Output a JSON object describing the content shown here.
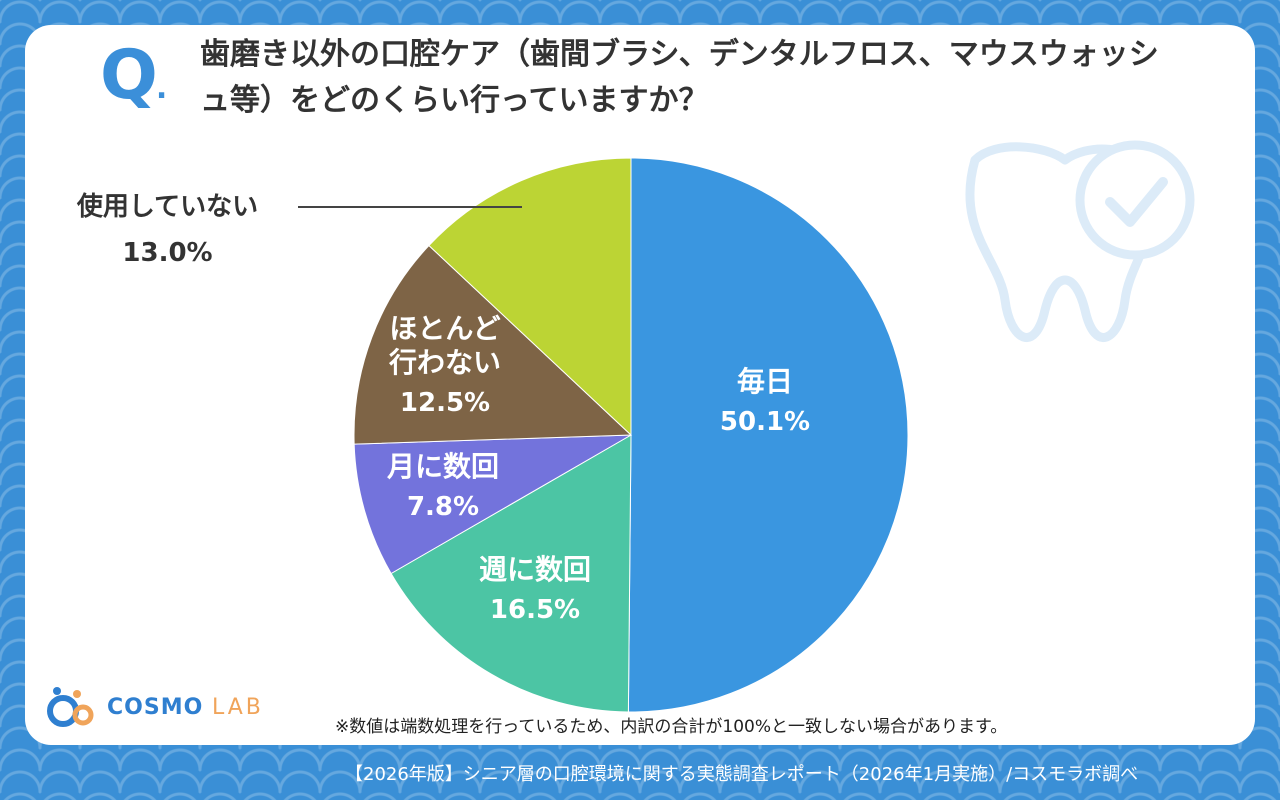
{
  "question": {
    "mark": "Q",
    "mark_dot": ".",
    "text": "歯磨き以外の口腔ケア（歯間ブラシ、デンタルフロス、マウスウォッシュ等）をどのくらい行っていますか？"
  },
  "chart_data": {
    "type": "pie",
    "title": "歯磨き以外の口腔ケア（歯間ブラシ、デンタルフロス、マウスウォッシュ等）をどのくらい行っていますか？",
    "unit": "%",
    "slices": [
      {
        "label": "毎日",
        "value": 50.1,
        "value_label": "50.1%",
        "color": "#3a96e0"
      },
      {
        "label": "週に数回",
        "value": 16.5,
        "value_label": "16.5%",
        "color": "#4cc5a4"
      },
      {
        "label": "月に数回",
        "value": 7.8,
        "value_label": "7.8%",
        "color": "#7373dc"
      },
      {
        "label": "ほとんど行わない",
        "value": 12.5,
        "value_label": "12.5%",
        "color": "#7e6446"
      },
      {
        "label": "使用していない",
        "value": 13.0,
        "value_label": "13.0%",
        "color": "#bcd434"
      }
    ]
  },
  "labels": {
    "daily": {
      "name": "毎日",
      "pct": "50.1%"
    },
    "weekly": {
      "name": "週に数回",
      "pct": "16.5%"
    },
    "monthly": {
      "name": "月に数回",
      "pct": "7.8%"
    },
    "rarely_line1": "ほとんど",
    "rarely_line2": "行わない",
    "rarely_pct": "12.5%",
    "unused": {
      "name": "使用していない",
      "pct": "13.0%"
    }
  },
  "logo": {
    "brand": "COSMO",
    "suffix": "LAB"
  },
  "footnote": "※数値は端数処理を行っているため、内訳の合計が100%と一致しない場合があります。",
  "footer": "【2026年版】シニア層の口腔環境に関する実態調査レポート（2026年1月実施）/コスモラボ調べ",
  "colors": {
    "brand_blue": "#3b8fd9",
    "accent_orange": "#f0a45a",
    "background": "#3a8fd6"
  }
}
